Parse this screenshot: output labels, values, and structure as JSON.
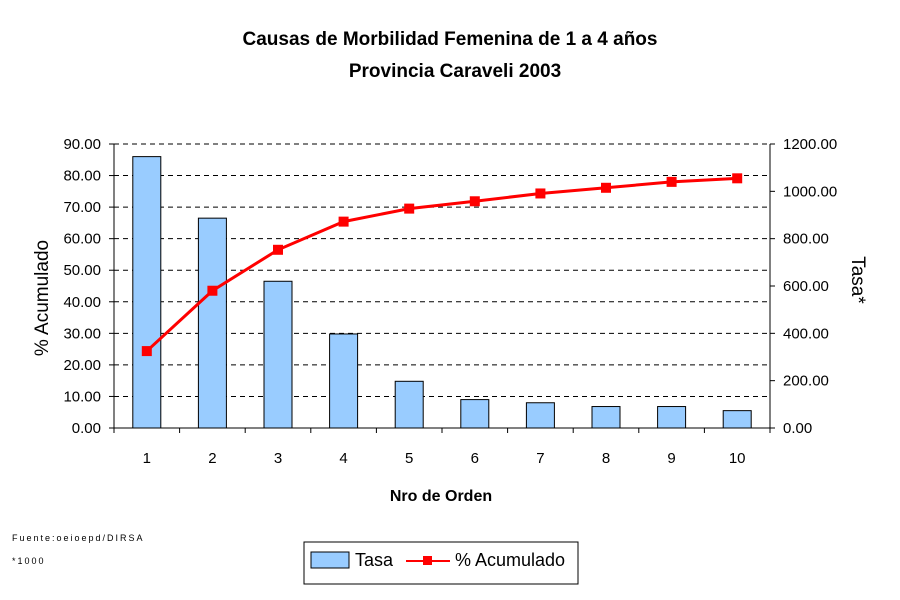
{
  "chart_data": {
    "type": "bar",
    "title": "Causas de Morbilidad Femenina de 1 a 4 años",
    "subtitle": "Provincia Caraveli 2003",
    "xlabel": "Nro de Orden",
    "ylabel_left": "% Acumulado",
    "ylabel_right": "Tasa*",
    "categories": [
      "1",
      "2",
      "3",
      "4",
      "5",
      "6",
      "7",
      "8",
      "9",
      "10"
    ],
    "series": [
      {
        "name": "Tasa",
        "type": "bar",
        "axis": "left",
        "color": "#99ccff",
        "values": [
          86.0,
          66.5,
          46.5,
          29.8,
          14.8,
          9.0,
          8.0,
          6.8,
          6.8,
          5.5
        ]
      },
      {
        "name": "% Acumulado",
        "type": "line",
        "axis": "right",
        "color": "#ff0000",
        "values": [
          325,
          580,
          753,
          872,
          927,
          958,
          991,
          1015,
          1040,
          1055
        ]
      }
    ],
    "ylim_left": [
      0,
      90
    ],
    "yticks_left": [
      "0.00",
      "10.00",
      "20.00",
      "30.00",
      "40.00",
      "50.00",
      "60.00",
      "70.00",
      "80.00",
      "90.00"
    ],
    "ylim_right": [
      0,
      1200
    ],
    "yticks_right": [
      "0.00",
      "200.00",
      "400.00",
      "600.00",
      "800.00",
      "1000.00",
      "1200.00"
    ],
    "grid": true,
    "legend_position": "bottom",
    "notes": [
      "Fuente:oeioepd/DIRSA",
      "*1000"
    ]
  }
}
